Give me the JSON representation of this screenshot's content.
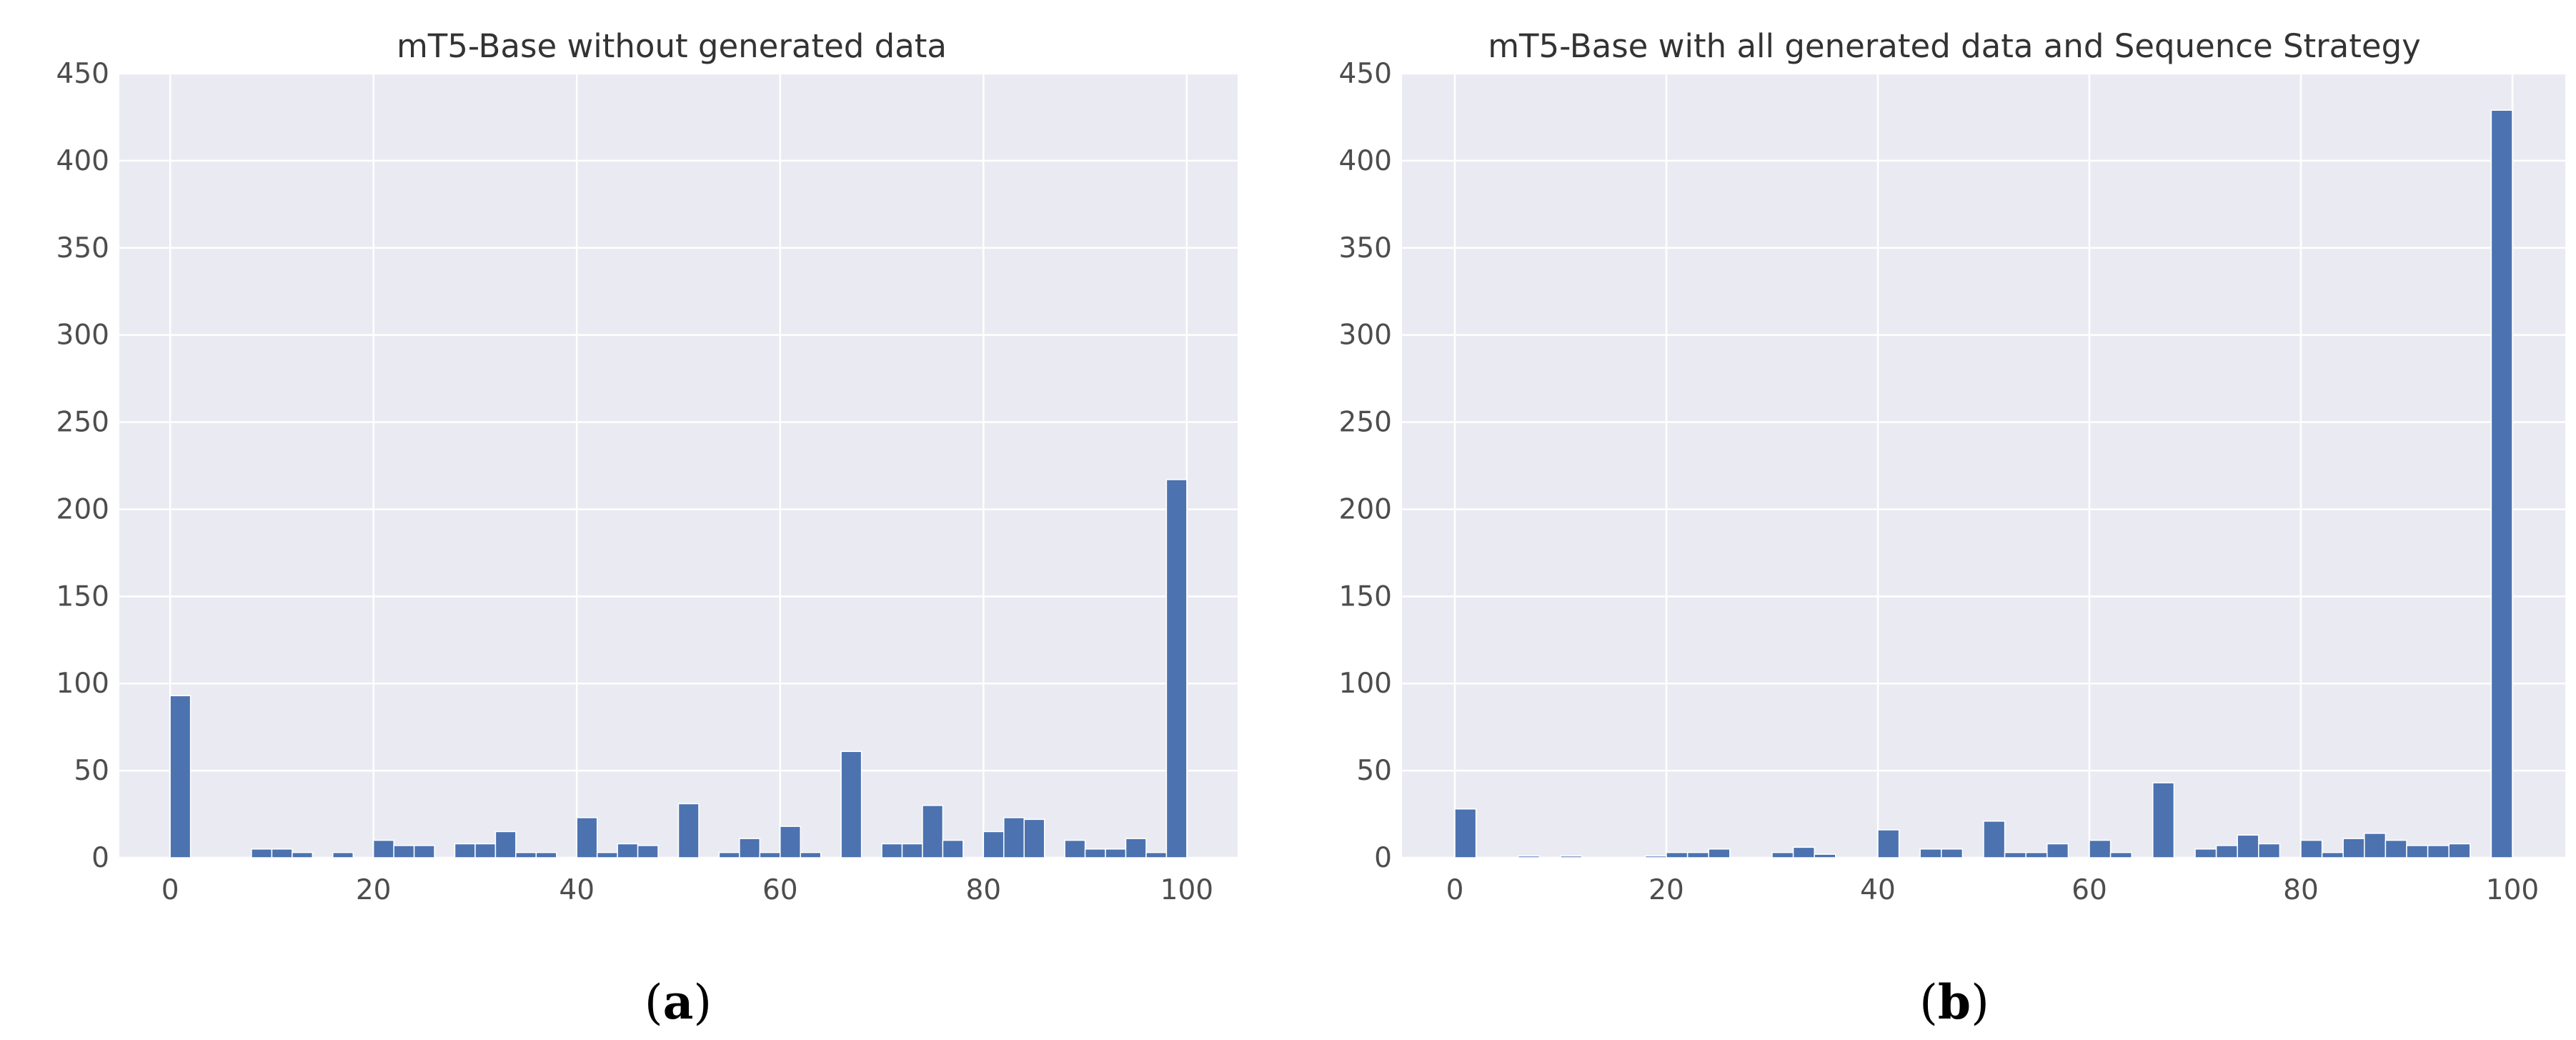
{
  "figure": {
    "panels": [
      {
        "label_open": "(",
        "label_letter": "a",
        "label_close": ")"
      },
      {
        "label_open": "(",
        "label_letter": "b",
        "label_close": ")"
      }
    ]
  },
  "colors": {
    "bar": "#4c72b0",
    "plot_background": "#eaeaf2",
    "grid": "#ffffff",
    "text": "#4d4d4d"
  },
  "chart_data": [
    {
      "type": "bar",
      "title": "mT5-Base without generated data",
      "xlabel": "",
      "ylabel": "",
      "xlim": [
        -5,
        105
      ],
      "ylim": [
        0,
        450
      ],
      "xticks": [
        0,
        20,
        40,
        60,
        80,
        100
      ],
      "yticks": [
        0,
        50,
        100,
        150,
        200,
        250,
        300,
        350,
        400,
        450
      ],
      "grid": true,
      "bin_width": 2,
      "bins": [
        {
          "x": 0,
          "y": 93
        },
        {
          "x": 8,
          "y": 5
        },
        {
          "x": 10,
          "y": 5
        },
        {
          "x": 12,
          "y": 3
        },
        {
          "x": 16,
          "y": 3
        },
        {
          "x": 20,
          "y": 10
        },
        {
          "x": 22,
          "y": 7
        },
        {
          "x": 24,
          "y": 7
        },
        {
          "x": 28,
          "y": 8
        },
        {
          "x": 30,
          "y": 8
        },
        {
          "x": 32,
          "y": 15
        },
        {
          "x": 34,
          "y": 3
        },
        {
          "x": 36,
          "y": 3
        },
        {
          "x": 40,
          "y": 23
        },
        {
          "x": 42,
          "y": 3
        },
        {
          "x": 44,
          "y": 8
        },
        {
          "x": 46,
          "y": 7
        },
        {
          "x": 50,
          "y": 31
        },
        {
          "x": 54,
          "y": 3
        },
        {
          "x": 56,
          "y": 11
        },
        {
          "x": 58,
          "y": 3
        },
        {
          "x": 60,
          "y": 18
        },
        {
          "x": 62,
          "y": 3
        },
        {
          "x": 66,
          "y": 61
        },
        {
          "x": 70,
          "y": 8
        },
        {
          "x": 72,
          "y": 8
        },
        {
          "x": 74,
          "y": 30
        },
        {
          "x": 76,
          "y": 10
        },
        {
          "x": 80,
          "y": 15
        },
        {
          "x": 82,
          "y": 23
        },
        {
          "x": 84,
          "y": 22
        },
        {
          "x": 88,
          "y": 10
        },
        {
          "x": 90,
          "y": 5
        },
        {
          "x": 92,
          "y": 5
        },
        {
          "x": 94,
          "y": 11
        },
        {
          "x": 96,
          "y": 3
        },
        {
          "x": 98,
          "y": 217
        }
      ]
    },
    {
      "type": "bar",
      "title": "mT5-Base with all generated data and Sequence Strategy",
      "xlabel": "",
      "ylabel": "",
      "xlim": [
        -5,
        105
      ],
      "ylim": [
        0,
        450
      ],
      "xticks": [
        0,
        20,
        40,
        60,
        80,
        100
      ],
      "yticks": [
        0,
        50,
        100,
        150,
        200,
        250,
        300,
        350,
        400,
        450
      ],
      "grid": true,
      "bin_width": 2,
      "bins": [
        {
          "x": 0,
          "y": 28
        },
        {
          "x": 6,
          "y": 1
        },
        {
          "x": 10,
          "y": 1
        },
        {
          "x": 18,
          "y": 1
        },
        {
          "x": 20,
          "y": 3
        },
        {
          "x": 22,
          "y": 3
        },
        {
          "x": 24,
          "y": 5
        },
        {
          "x": 30,
          "y": 3
        },
        {
          "x": 32,
          "y": 6
        },
        {
          "x": 34,
          "y": 2
        },
        {
          "x": 40,
          "y": 16
        },
        {
          "x": 44,
          "y": 5
        },
        {
          "x": 46,
          "y": 5
        },
        {
          "x": 50,
          "y": 21
        },
        {
          "x": 52,
          "y": 3
        },
        {
          "x": 54,
          "y": 3
        },
        {
          "x": 56,
          "y": 8
        },
        {
          "x": 60,
          "y": 10
        },
        {
          "x": 62,
          "y": 3
        },
        {
          "x": 66,
          "y": 43
        },
        {
          "x": 70,
          "y": 5
        },
        {
          "x": 72,
          "y": 7
        },
        {
          "x": 74,
          "y": 13
        },
        {
          "x": 76,
          "y": 8
        },
        {
          "x": 80,
          "y": 10
        },
        {
          "x": 82,
          "y": 3
        },
        {
          "x": 84,
          "y": 11
        },
        {
          "x": 86,
          "y": 14
        },
        {
          "x": 88,
          "y": 10
        },
        {
          "x": 90,
          "y": 7
        },
        {
          "x": 92,
          "y": 7
        },
        {
          "x": 94,
          "y": 8
        },
        {
          "x": 98,
          "y": 429
        }
      ]
    }
  ]
}
